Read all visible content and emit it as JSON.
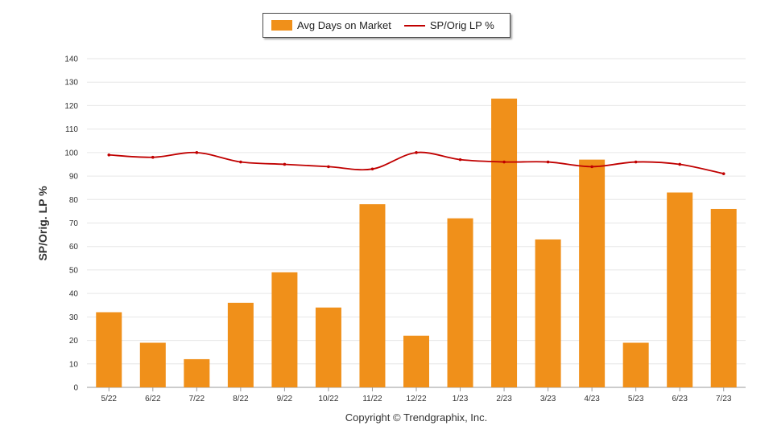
{
  "chart_data": {
    "type": "bar",
    "categories": [
      "5/22",
      "6/22",
      "7/22",
      "8/22",
      "9/22",
      "10/22",
      "11/22",
      "12/22",
      "1/23",
      "2/23",
      "3/23",
      "4/23",
      "5/23",
      "6/23",
      "7/23"
    ],
    "series": [
      {
        "name": "Avg Days on Market",
        "kind": "bar",
        "color": "#f0901a",
        "values": [
          32,
          19,
          12,
          36,
          49,
          34,
          78,
          22,
          72,
          123,
          63,
          97,
          19,
          83,
          76
        ]
      },
      {
        "name": "SP/Orig LP %",
        "kind": "line",
        "color": "#c00000",
        "values": [
          99,
          98,
          100,
          96,
          95,
          94,
          93,
          100,
          97,
          96,
          96,
          94,
          96,
          95,
          91
        ]
      }
    ],
    "ylabel": "SP/Orig. LP %",
    "ylim": [
      0,
      140
    ],
    "yticks": [
      0,
      10,
      20,
      30,
      40,
      50,
      60,
      70,
      80,
      90,
      100,
      110,
      120,
      130,
      140
    ],
    "grid": true,
    "legend_position": "top-center"
  },
  "footer": "Copyright © Trendgraphix, Inc."
}
